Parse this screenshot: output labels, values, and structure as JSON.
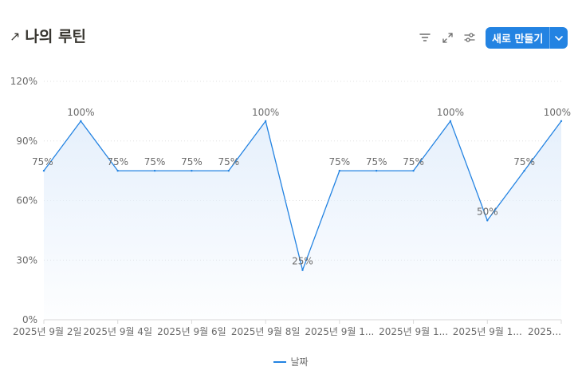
{
  "header": {
    "title_arrow": "↗",
    "title": "나의 루틴",
    "new_button": "새로 만들기"
  },
  "icons": {
    "title": "arrow-up-right-icon",
    "filter": "filter-icon",
    "expand": "expand-icon",
    "settings": "sliders-icon",
    "dropdown": "chevron-down-icon"
  },
  "colors": {
    "accent": "#2383e2",
    "line": "#2383e2",
    "area_top": "#e6f0fc",
    "grid": "#e0e0e0",
    "axis_text": "#6b6b6b",
    "label_text": "#6b6b6b"
  },
  "chart_data": {
    "type": "area",
    "x_tick_labels": [
      "2025년 9월 2일",
      "2025년 9월 4일",
      "2025년 9월 6일",
      "2025년 9월 8일",
      "2025년 9월 1...",
      "2025년 9월 1...",
      "2025년 9월 1...",
      "2025..."
    ],
    "series": [
      {
        "name": "날짜",
        "values": [
          75,
          100,
          75,
          75,
          75,
          75,
          100,
          25,
          75,
          75,
          75,
          100,
          50,
          75,
          100
        ],
        "labels": [
          "75%",
          "100%",
          "75%",
          "75%",
          "75%",
          "75%",
          "100%",
          "25%",
          "75%",
          "75%",
          "75%",
          "100%",
          "50%",
          "75%",
          "100%"
        ]
      }
    ],
    "ylim": [
      0,
      120
    ],
    "y_ticks": [
      0,
      30,
      60,
      90,
      120
    ],
    "y_tick_labels": [
      "0%",
      "30%",
      "60%",
      "90%",
      "120%"
    ],
    "grid": true,
    "legend": "bottom-center"
  }
}
